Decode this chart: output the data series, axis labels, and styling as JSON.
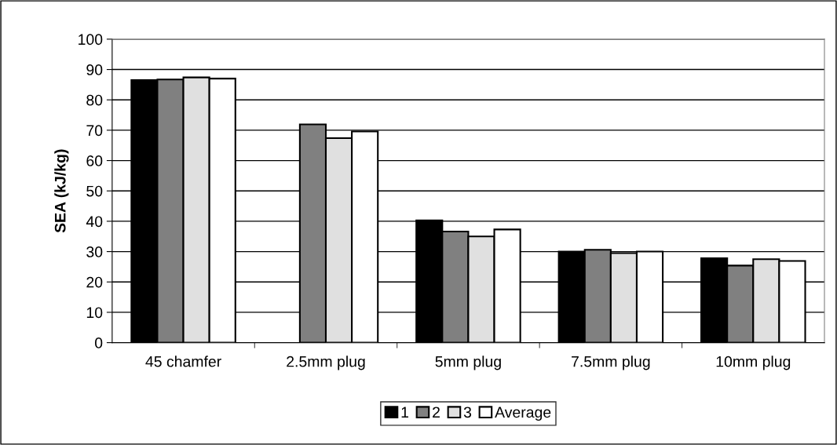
{
  "chart_data": {
    "type": "bar",
    "ylabel": "SEA (kJ/kg)",
    "categories": [
      "45 chamfer",
      "2.5mm plug",
      "5mm plug",
      "7.5mm plug",
      "10mm plug"
    ],
    "series": [
      {
        "name": "1",
        "color": "#000000",
        "values": [
          86.5,
          null,
          40.3,
          30.0,
          27.8
        ]
      },
      {
        "name": "2",
        "color": "#808080",
        "values": [
          86.7,
          71.9,
          36.6,
          30.6,
          25.4
        ]
      },
      {
        "name": "3",
        "color": "#e0e0e0",
        "values": [
          87.4,
          67.4,
          35.0,
          29.5,
          27.5
        ]
      },
      {
        "name": "Average",
        "color": "#ffffff",
        "values": [
          87.0,
          69.6,
          37.3,
          30.0,
          26.9
        ]
      }
    ],
    "ylim": [
      0,
      100
    ],
    "yticks": [
      0,
      10,
      20,
      30,
      40,
      50,
      60,
      70,
      80,
      90,
      100
    ],
    "grid": "y",
    "legend": "bottom"
  }
}
